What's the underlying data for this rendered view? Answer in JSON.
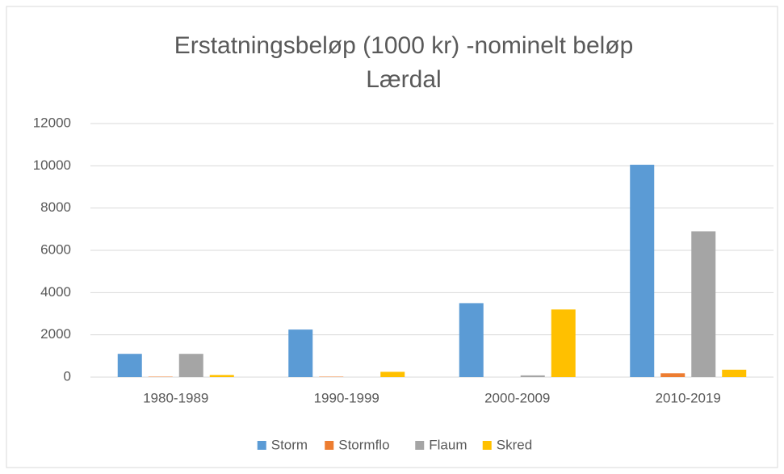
{
  "chart_data": {
    "type": "bar",
    "title": [
      "Erstatningsbeløp  (1000 kr) -nominelt beløp",
      "Lærdal"
    ],
    "categories": [
      "1980-1989",
      "1990-1999",
      "2000-2009",
      "2010-2019"
    ],
    "series": [
      {
        "name": "Storm",
        "color": "#5b9bd5",
        "values": [
          1100,
          2250,
          3500,
          10050
        ]
      },
      {
        "name": "Stormflo",
        "color": "#ed7d31",
        "values": [
          20,
          20,
          0,
          180
        ]
      },
      {
        "name": "Flaum",
        "color": "#a5a5a5",
        "values": [
          1100,
          0,
          80,
          6900
        ]
      },
      {
        "name": "Skred",
        "color": "#ffc000",
        "values": [
          100,
          250,
          3200,
          350
        ]
      }
    ],
    "ylim": [
      0,
      12000
    ],
    "yticks": [
      0,
      2000,
      4000,
      6000,
      8000,
      10000,
      12000
    ],
    "grid": true,
    "legend": "bottom"
  }
}
